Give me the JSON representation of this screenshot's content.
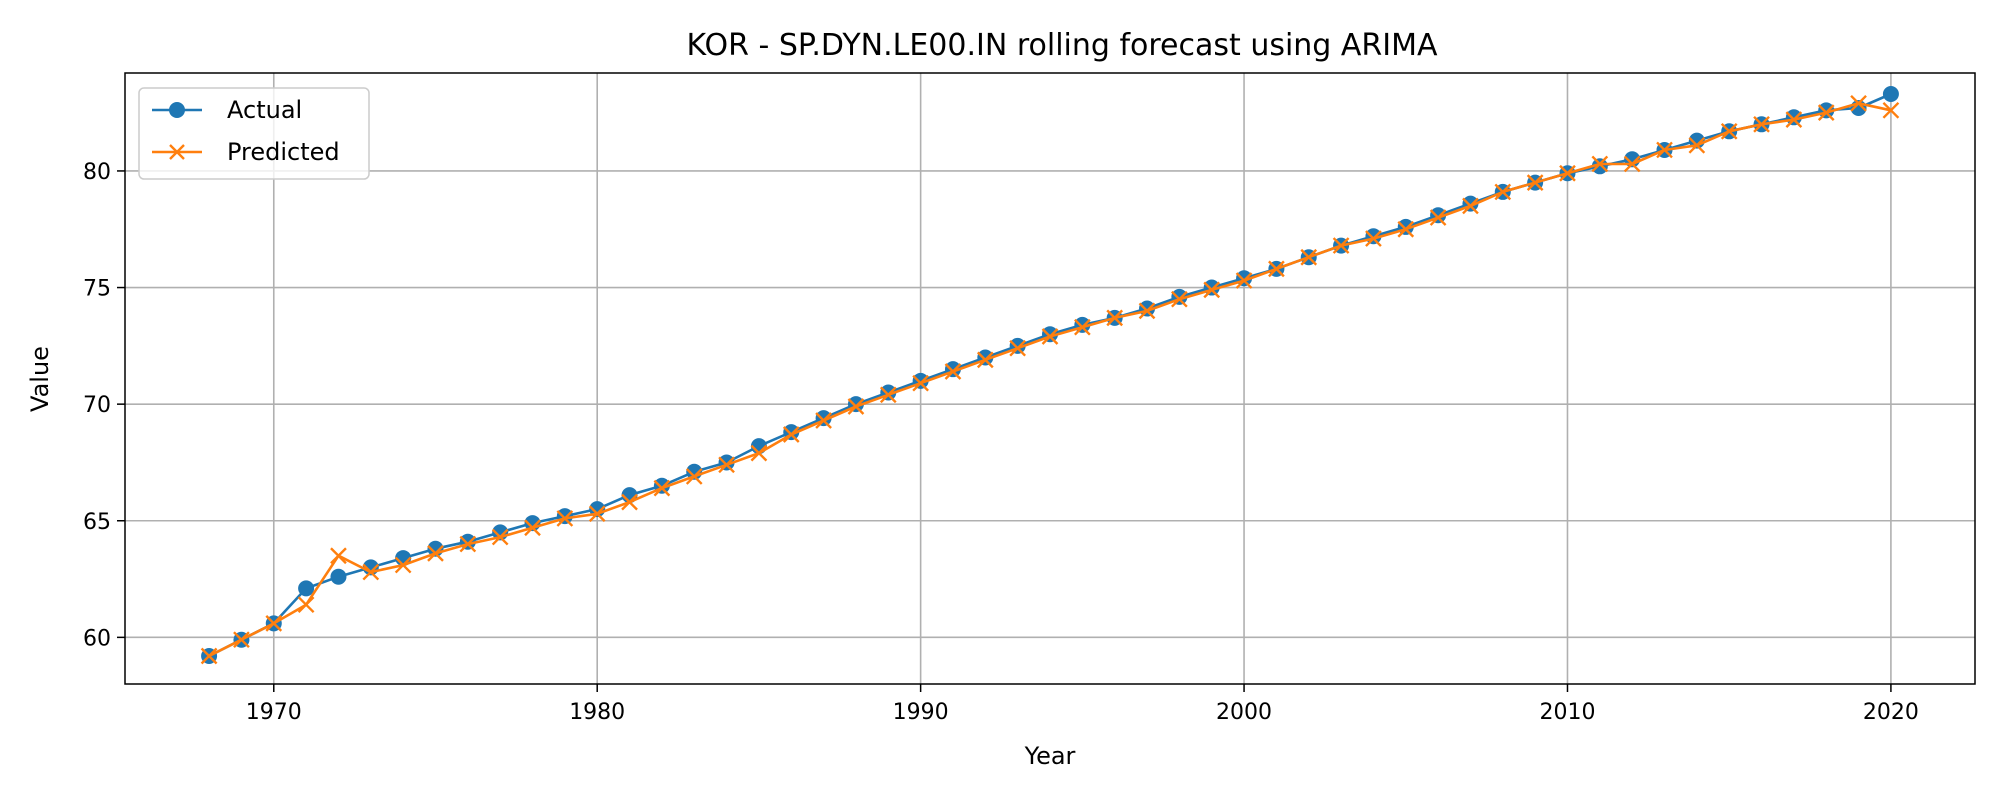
{
  "chart_data": {
    "type": "line",
    "title": "KOR - SP.DYN.LE00.IN rolling forecast using ARIMA",
    "xlabel": "Year",
    "ylabel": "Value",
    "xlim": [
      1965.4,
      2022.6
    ],
    "ylim": [
      58.0,
      84.2
    ],
    "xticks": [
      1970,
      1980,
      1990,
      2000,
      2010,
      2020
    ],
    "yticks": [
      60,
      65,
      70,
      75,
      80
    ],
    "grid": true,
    "legend_position": "top-left",
    "x": [
      1968,
      1969,
      1970,
      1971,
      1972,
      1973,
      1974,
      1975,
      1976,
      1977,
      1978,
      1979,
      1980,
      1981,
      1982,
      1983,
      1984,
      1985,
      1986,
      1987,
      1988,
      1989,
      1990,
      1991,
      1992,
      1993,
      1994,
      1995,
      1996,
      1997,
      1998,
      1999,
      2000,
      2001,
      2002,
      2003,
      2004,
      2005,
      2006,
      2007,
      2008,
      2009,
      2010,
      2011,
      2012,
      2013,
      2014,
      2015,
      2016,
      2017,
      2018,
      2019,
      2020
    ],
    "series": [
      {
        "name": "Actual",
        "color": "#1f77b4",
        "marker": "circle",
        "values": [
          59.2,
          59.9,
          60.6,
          62.1,
          62.6,
          63.0,
          63.4,
          63.8,
          64.1,
          64.5,
          64.9,
          65.2,
          65.5,
          66.1,
          66.5,
          67.1,
          67.5,
          68.2,
          68.8,
          69.4,
          70.0,
          70.5,
          71.0,
          71.5,
          72.0,
          72.5,
          73.0,
          73.4,
          73.7,
          74.1,
          74.6,
          75.0,
          75.4,
          75.8,
          76.3,
          76.8,
          77.2,
          77.6,
          78.1,
          78.6,
          79.1,
          79.5,
          79.9,
          80.2,
          80.5,
          80.9,
          81.3,
          81.7,
          82.0,
          82.3,
          82.6,
          82.7,
          83.3
        ]
      },
      {
        "name": "Predicted",
        "color": "#ff7f0e",
        "marker": "x",
        "values": [
          59.2,
          59.9,
          60.6,
          61.4,
          63.5,
          62.8,
          63.1,
          63.6,
          64.0,
          64.3,
          64.7,
          65.1,
          65.3,
          65.8,
          66.4,
          66.9,
          67.4,
          67.9,
          68.7,
          69.3,
          69.9,
          70.4,
          70.9,
          71.4,
          71.9,
          72.4,
          72.9,
          73.3,
          73.7,
          74.0,
          74.5,
          74.9,
          75.3,
          75.8,
          76.3,
          76.8,
          77.1,
          77.5,
          78.0,
          78.5,
          79.1,
          79.5,
          79.9,
          80.3,
          80.3,
          80.9,
          81.1,
          81.7,
          82.0,
          82.2,
          82.5,
          82.9,
          82.6
        ]
      }
    ]
  }
}
